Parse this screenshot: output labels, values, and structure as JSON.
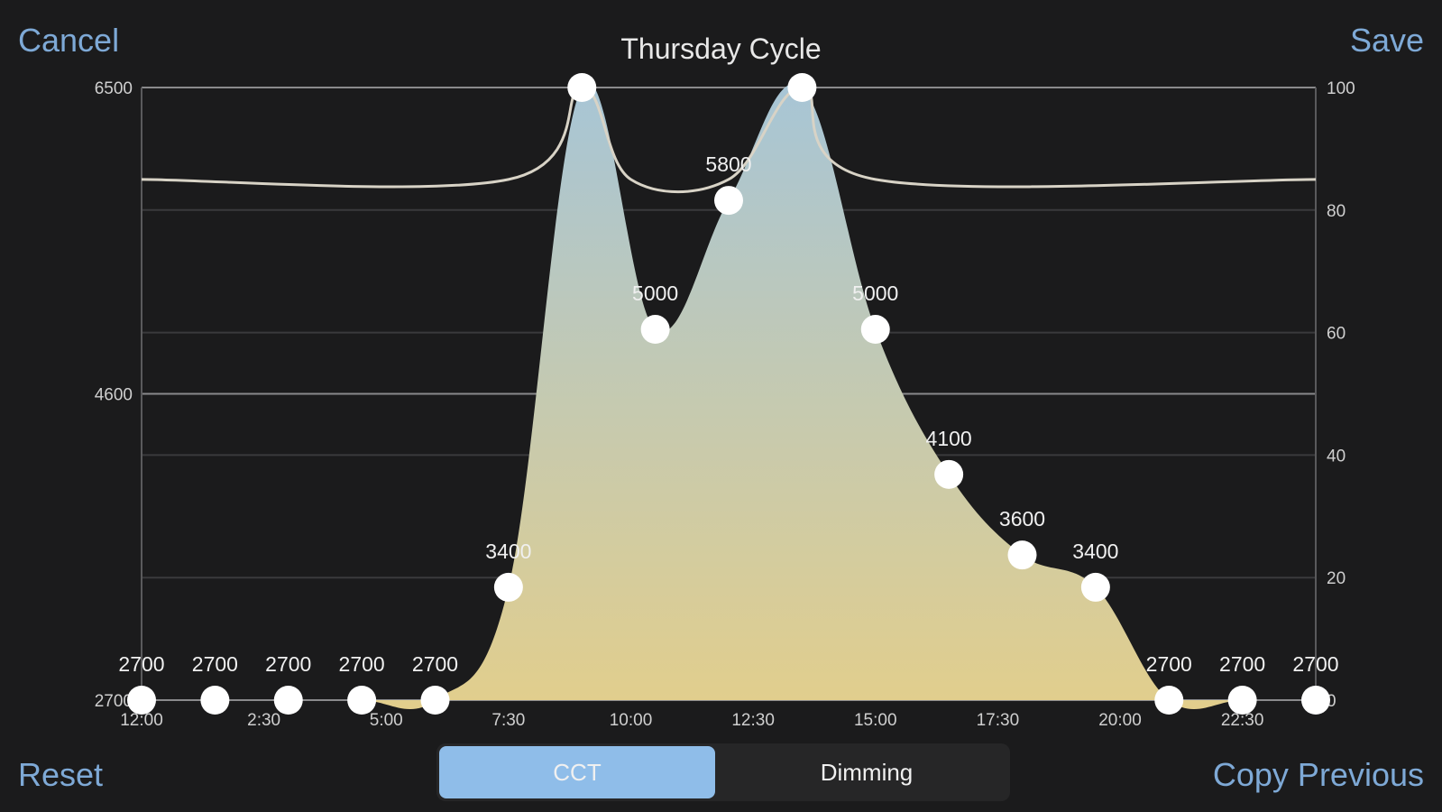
{
  "header": {
    "cancel": "Cancel",
    "save": "Save",
    "title": "Thursday Cycle"
  },
  "footer": {
    "reset": "Reset",
    "copy_previous": "Copy Previous",
    "segments": [
      "CCT",
      "Dimming"
    ],
    "selected": "CCT"
  },
  "colors": {
    "accent": "#7ea9d6",
    "segment_active": "#8fbde9",
    "fill_top": "#a7c5d6",
    "fill_bottom": "#e2ce8c"
  },
  "chart_data": {
    "type": "area",
    "title": "Thursday Cycle",
    "x_tick_labels": [
      "12:00",
      "2:30",
      "5:00",
      "7:30",
      "10:00",
      "12:30",
      "15:00",
      "17:30",
      "20:00",
      "22:30"
    ],
    "left_axis": {
      "tick_labels": [
        "6500",
        "4600",
        "2700"
      ],
      "ylim": [
        2700,
        6500
      ]
    },
    "right_axis": {
      "tick_labels": [
        "100",
        "80",
        "60",
        "40",
        "20",
        "0"
      ],
      "ylim": [
        0,
        100
      ]
    },
    "grid": true,
    "cct_series": {
      "x": [
        0,
        1.5,
        3,
        4.5,
        6,
        7.5,
        9,
        10.5,
        12,
        13.5,
        15,
        16.5,
        18,
        19.5,
        21,
        22.5,
        24
      ],
      "values": [
        2700,
        2700,
        2700,
        2700,
        2700,
        3400,
        6500,
        5000,
        5800,
        6500,
        5000,
        4100,
        3600,
        3400,
        2700,
        2700,
        2700
      ],
      "labels": [
        "2700",
        "2700",
        "2700",
        "2700",
        "2700",
        "3400",
        "",
        "5000",
        "5800",
        "",
        "5000",
        "4100",
        "3600",
        "3400",
        "2700",
        "2700",
        "2700"
      ]
    },
    "dimming_series": {
      "x": [
        0,
        7.5,
        9,
        10,
        12,
        13.5,
        15,
        24
      ],
      "values": [
        85,
        85,
        100,
        85,
        85,
        100,
        85,
        85
      ]
    }
  }
}
